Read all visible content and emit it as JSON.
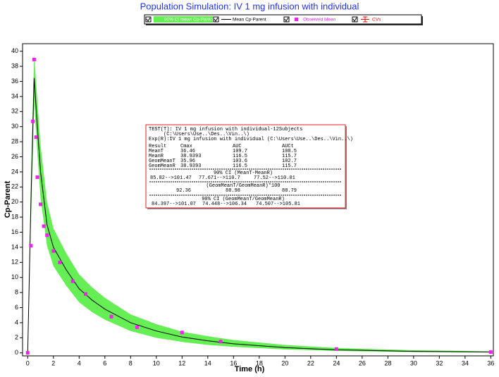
{
  "chart_data": {
    "type": "line",
    "title": "Population Simulation: IV 1 mg infusion with individual",
    "x_label": "Time (h)",
    "y_label": "Cp-Parent",
    "xlim": [
      -0.4,
      36.2
    ],
    "ylim": [
      -0.4,
      41
    ],
    "xticks": [
      0,
      2,
      4,
      6,
      8,
      10,
      12,
      14,
      16,
      18,
      20,
      22,
      24,
      26,
      28,
      30,
      32,
      34,
      36
    ],
    "yticks": [
      0,
      2,
      4,
      6,
      8,
      10,
      12,
      14,
      16,
      18,
      20,
      22,
      24,
      26,
      28,
      30,
      32,
      34,
      36,
      38,
      40
    ],
    "x": [
      0,
      0.25,
      0.5,
      0.75,
      1,
      1.5,
      2,
      3,
      4,
      5,
      6,
      8,
      10,
      12,
      14,
      16,
      20,
      24,
      30,
      36
    ],
    "series": [
      {
        "name": "90% CI mean Cp-Parent",
        "color": "#66ee55",
        "upper": [
          0,
          23,
          39.6,
          33.5,
          27.5,
          20,
          16.5,
          13.2,
          10.4,
          8.7,
          7.3,
          5.1,
          3.8,
          2.8,
          2.2,
          1.7,
          1.05,
          0.65,
          0.35,
          0.2
        ],
        "lower": [
          0,
          17,
          33.2,
          26.5,
          20.5,
          14.2,
          11.5,
          8.9,
          6.7,
          5.4,
          4.4,
          2.9,
          2.0,
          1.45,
          1.05,
          0.8,
          0.45,
          0.25,
          0.1,
          0.05
        ]
      },
      {
        "name": "Mean Cp-Parent",
        "color": "#000000",
        "values": [
          0,
          20,
          36.46,
          30,
          24,
          17,
          14,
          11,
          8.5,
          7,
          5.8,
          4,
          2.9,
          2.1,
          1.6,
          1.2,
          0.7,
          0.4,
          0.2,
          0.1
        ]
      },
      {
        "name": "Observed Mean",
        "color": "#ee22ee",
        "x": [
          0,
          0.25,
          0.4,
          0.5,
          0.65,
          0.75,
          1,
          1.25,
          1.5,
          2,
          2.5,
          3.5,
          4.5,
          6.5,
          8.5,
          12,
          15,
          24,
          36
        ],
        "values": [
          0,
          14.2,
          30.7,
          38.9,
          28.6,
          23.3,
          19.7,
          16.8,
          15.6,
          13.5,
          12,
          9.5,
          7.8,
          4.8,
          3.4,
          2.7,
          1.5,
          0.5,
          0.1
        ]
      },
      {
        "name": "CVs",
        "color": "#ff0000"
      }
    ]
  },
  "annotation": {
    "lines": [
      "TEST(T): IV 1 mg infusion with individual-12Subjects",
      "(C:\\Users\\Use..\\Des..\\Vin..\\)",
      "Exp(R):IV 1 mg infusion with individual (C:\\Users\\Use..\\Des..\\Vin..\\)"
    ],
    "header": [
      "Result",
      "Cmax",
      "AUC",
      "AUCt"
    ],
    "rows": [
      [
        "MeanT",
        "36.46",
        "109.7",
        "108.5"
      ],
      [
        "MeanR",
        "38.9393",
        "116.5",
        "115.7"
      ],
      [
        "GeomMeanT",
        "35.96",
        "103.6",
        "102.7"
      ],
      [
        "GeomMeanR",
        "38.9393",
        "116.5",
        "115.7"
      ]
    ],
    "sections": [
      {
        "title": "90% CI (MeanT-MeanR)",
        "values": [
          "85.82-->101.47",
          "77.671-->110.7",
          "77.52-->110.01"
        ]
      },
      {
        "title": "(GeomMeanT/GeomMeanR)*100",
        "values": [
          "92.36",
          "88.98",
          "88.79"
        ]
      },
      {
        "title": "90% CI (GeomMeanT/GeomMeanR)",
        "values": [
          "84.397-->101.07",
          "74.448-->106.34",
          "74.507-->105.81"
        ]
      }
    ]
  }
}
